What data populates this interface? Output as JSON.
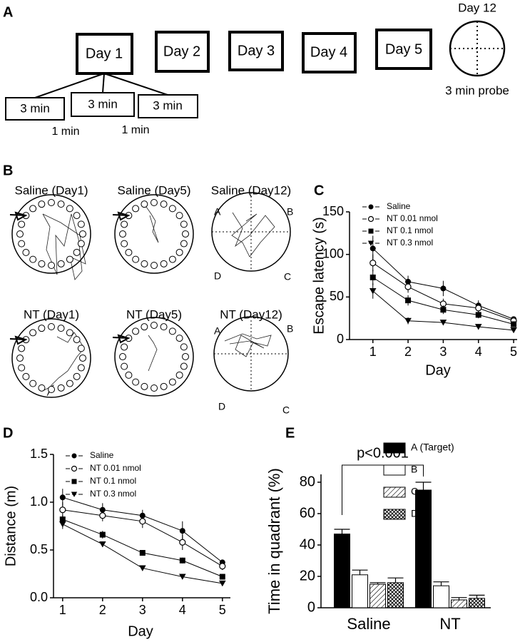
{
  "panel_labels": [
    "A",
    "B",
    "C",
    "D",
    "E"
  ],
  "panel_a": {
    "days": [
      "Day 1",
      "Day 2",
      "Day 3",
      "Day 4",
      "Day 5"
    ],
    "probe_day": "Day 12",
    "trials": [
      "3 min",
      "3 min",
      "3 min"
    ],
    "intervals": [
      "1 min",
      "1 min"
    ],
    "probe": "3 min probe"
  },
  "panel_b": {
    "titles": [
      "Saline (Day1)",
      "Saline (Day5)",
      "Saline (Day12)",
      "NT (Day1)",
      "NT (Day5)",
      "NT (Day12)"
    ],
    "quadrants": [
      "A",
      "B",
      "C",
      "D"
    ]
  },
  "chart_data": [
    {
      "type": "line",
      "xlabel": "Day",
      "ylabel": "Escape latency (s)",
      "x": [
        1,
        2,
        3,
        4,
        5
      ],
      "xlim": [
        0.6,
        5.1
      ],
      "xticks": [
        1,
        2,
        3,
        4,
        5
      ],
      "ylim": [
        0,
        150
      ],
      "yticks": [
        0,
        50,
        100,
        150
      ],
      "series": [
        {
          "name": "Saline",
          "color": "#000000",
          "marker": "circle",
          "values": [
            107,
            68,
            60,
            40,
            24
          ],
          "errors": [
            15,
            7,
            9,
            6,
            3
          ]
        },
        {
          "name": "NT 0.01 nmol",
          "color": "#000000",
          "marker": "open-circle",
          "values": [
            90,
            62,
            42,
            37,
            22
          ],
          "errors": [
            10,
            7,
            6,
            5,
            3
          ]
        },
        {
          "name": "NT 0.1 nmol",
          "color": "#000000",
          "marker": "square",
          "values": [
            73,
            46,
            35,
            29,
            18
          ],
          "errors": [
            9,
            6,
            5,
            4,
            3
          ]
        },
        {
          "name": "NT 0.3 nmol",
          "color": "#000000",
          "marker": "triangle-down",
          "values": [
            57,
            22,
            20,
            15,
            11
          ],
          "errors": [
            9,
            4,
            3,
            3,
            2
          ]
        }
      ]
    },
    {
      "type": "line",
      "xlabel": "Day",
      "ylabel": "Distance (m)",
      "x": [
        1,
        2,
        3,
        4,
        5
      ],
      "xlim": [
        0.7,
        5.2
      ],
      "xticks": [
        1,
        2,
        3,
        4,
        5
      ],
      "ylim": [
        0,
        1.5
      ],
      "yticks": [
        {
          "value": 0,
          "label": "0.0"
        },
        {
          "value": 0.5,
          "label": "0.5"
        },
        {
          "value": 1,
          "label": "1.0"
        },
        {
          "value": 1.5,
          "label": "1.5"
        }
      ],
      "series": [
        {
          "name": "Saline",
          "color": "#000000",
          "marker": "circle",
          "values": [
            1.05,
            0.92,
            0.86,
            0.7,
            0.37
          ],
          "errors": [
            0.09,
            0.07,
            0.06,
            0.1,
            0.03
          ]
        },
        {
          "name": "NT 0.01 nmol",
          "color": "#000000",
          "marker": "open-circle",
          "values": [
            0.92,
            0.86,
            0.8,
            0.58,
            0.33
          ],
          "errors": [
            0.08,
            0.06,
            0.07,
            0.08,
            0.04
          ]
        },
        {
          "name": "NT 0.1 nmol",
          "color": "#000000",
          "marker": "square",
          "values": [
            0.82,
            0.66,
            0.47,
            0.39,
            0.22
          ],
          "errors": [
            0.05,
            0.04,
            0.03,
            0.03,
            0.03
          ]
        },
        {
          "name": "NT 0.3 nmol",
          "color": "#000000",
          "marker": "triangle-down",
          "values": [
            0.77,
            0.56,
            0.31,
            0.22,
            0.15
          ],
          "errors": [
            0.05,
            0.03,
            0.02,
            0.02,
            0.02
          ]
        }
      ]
    },
    {
      "type": "bar",
      "ylabel": "Time in quadrant (%)",
      "annotation": "p<0.001",
      "categories": [
        "Saline",
        "NT"
      ],
      "ylim": [
        0,
        85
      ],
      "yticks": [
        0,
        20,
        40,
        60,
        80
      ],
      "series": [
        {
          "name": "A (Target)",
          "color": "#000000",
          "values": [
            47,
            75
          ],
          "errors": [
            3,
            5
          ]
        },
        {
          "name": "B",
          "color": "#ffffff",
          "values": [
            21,
            14
          ],
          "errors": [
            3,
            2.5
          ]
        },
        {
          "name": "C",
          "color": "#ffffff",
          "pattern": "diagonal",
          "values": [
            15,
            5
          ],
          "errors": [
            1,
            1.5
          ]
        },
        {
          "name": "D",
          "color": "#ffffff",
          "pattern": "crosshatch",
          "values": [
            16,
            6
          ],
          "errors": [
            3,
            2
          ]
        }
      ]
    }
  ]
}
